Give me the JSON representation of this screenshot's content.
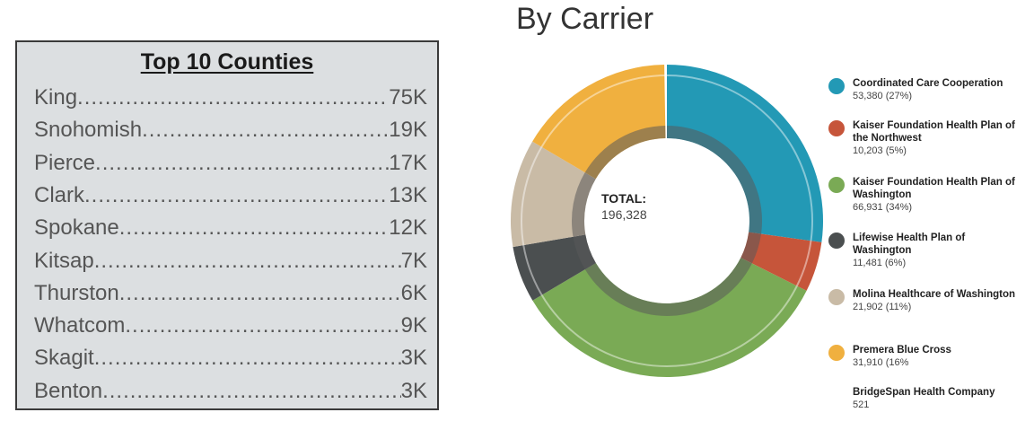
{
  "counties": {
    "title": "Top 10 Counties",
    "rows": [
      {
        "name": "King ",
        "value": "75K"
      },
      {
        "name": "Snohomish",
        "value": "19K"
      },
      {
        "name": "Pierce",
        "value": "17K"
      },
      {
        "name": "Clark ",
        "value": "13K"
      },
      {
        "name": "Spokane",
        "value": "12K"
      },
      {
        "name": "Kitsap",
        "value": "7K"
      },
      {
        "name": "Thurston ",
        "value": "6K"
      },
      {
        "name": "Whatcom ",
        "value": "9K"
      },
      {
        "name": "Skagit",
        "value": "3K"
      },
      {
        "name": "Benton ",
        "value": "3K"
      }
    ]
  },
  "chart_data": {
    "type": "pie",
    "title": "By Carrier",
    "donut": true,
    "center_label": "TOTAL:",
    "center_value": "196,328",
    "legend_position": "right",
    "series": [
      {
        "name": "Coordinated Care Cooperation",
        "value": 53380,
        "label": "53,380 (27%)",
        "color": "#2399b5"
      },
      {
        "name": "Kaiser Foundation Health Plan of the Northwest",
        "value": 10203,
        "label": "10,203 (5%)",
        "color": "#c6553a"
      },
      {
        "name": "Kaiser Foundation Health Plan of Washington",
        "value": 66931,
        "label": "66,931 (34%)",
        "color": "#7aaa55"
      },
      {
        "name": "Lifewise Health Plan of Washington",
        "value": 11481,
        "label": "11,481 (6%)",
        "color": "#4b4f50"
      },
      {
        "name": "Molina Healthcare of Washington",
        "value": 21902,
        "label": "21,902 (11%)",
        "color": "#c9bba6"
      },
      {
        "name": "Premera Blue Cross",
        "value": 31910,
        "label": "31,910 (16%",
        "color": "#f0b03f"
      },
      {
        "name": "BridgeSpan Health Company",
        "value": 521,
        "label": "521",
        "color": ""
      }
    ]
  }
}
